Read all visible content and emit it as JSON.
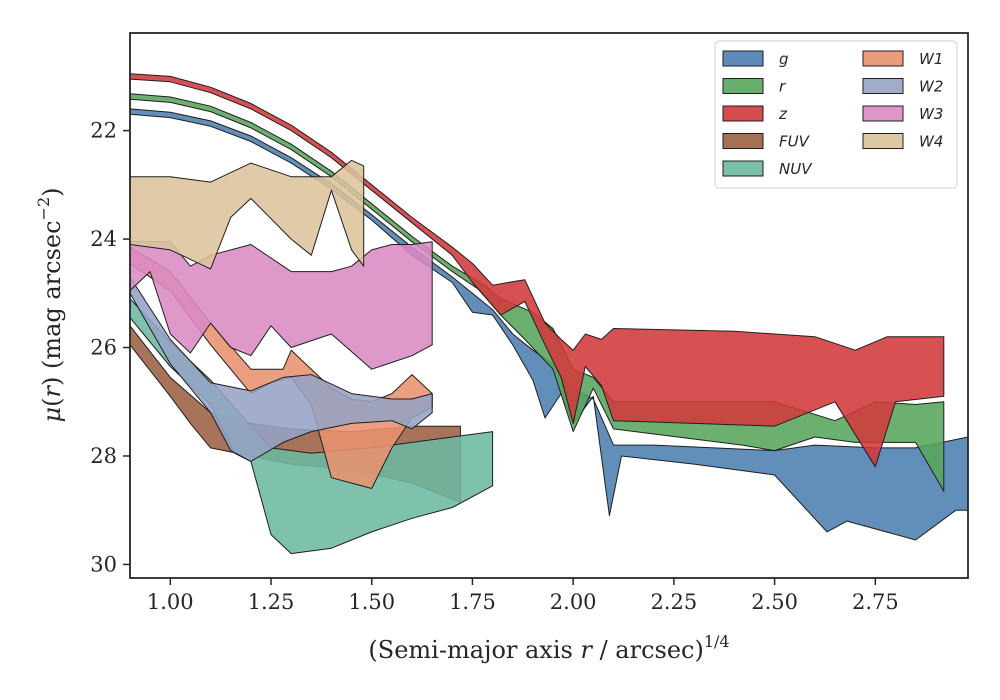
{
  "chart_data": {
    "type": "area",
    "title": "",
    "xlabel": "(Semi-major axis r / arcsec)^1/4",
    "xlabel_parts": {
      "prefix": "(Semi-major axis ",
      "var": "r",
      "mid": " / arcsec)",
      "sup": "1/4"
    },
    "ylabel": "μ(r) (mag arcsec−2)",
    "ylabel_parts": {
      "mu": "μ",
      "open": "(",
      "var": "r",
      "close": ") (mag arcsec",
      "sup": "−2",
      "end": ")"
    },
    "xlim": [
      0.9,
      2.98
    ],
    "ylim": [
      30.25,
      20.2
    ],
    "y_inverted": true,
    "xticks": [
      1.0,
      1.25,
      1.5,
      1.75,
      2.0,
      2.25,
      2.5,
      2.75
    ],
    "xtick_labels": [
      "1.00",
      "1.25",
      "1.50",
      "1.75",
      "2.00",
      "2.25",
      "2.50",
      "2.75"
    ],
    "yticks": [
      22,
      24,
      26,
      28,
      30
    ],
    "ytick_labels": [
      "22",
      "24",
      "26",
      "28",
      "30"
    ],
    "grid": false,
    "legend": {
      "placement": "top-right",
      "columns": 2
    },
    "series": [
      {
        "name": "g",
        "color": "#4c7eb0",
        "upper": [
          [
            0.9,
            21.6
          ],
          [
            1.0,
            21.66
          ],
          [
            1.1,
            21.82
          ],
          [
            1.2,
            22.1
          ],
          [
            1.3,
            22.5
          ],
          [
            1.4,
            22.98
          ],
          [
            1.5,
            23.55
          ],
          [
            1.6,
            24.15
          ],
          [
            1.7,
            24.7
          ],
          [
            1.8,
            25.3
          ],
          [
            1.85,
            25.75
          ],
          [
            1.9,
            26.05
          ],
          [
            1.95,
            26.3
          ],
          [
            2.0,
            26.75
          ],
          [
            2.05,
            26.95
          ],
          [
            2.1,
            27.8
          ],
          [
            2.2,
            27.8
          ],
          [
            2.35,
            27.85
          ],
          [
            2.5,
            27.9
          ],
          [
            2.6,
            27.8
          ],
          [
            2.75,
            27.85
          ],
          [
            2.85,
            27.85
          ],
          [
            2.98,
            27.65
          ]
        ],
        "lower": [
          [
            0.9,
            21.7
          ],
          [
            1.0,
            21.76
          ],
          [
            1.1,
            21.92
          ],
          [
            1.2,
            22.2
          ],
          [
            1.3,
            22.6
          ],
          [
            1.4,
            23.08
          ],
          [
            1.5,
            23.65
          ],
          [
            1.6,
            24.3
          ],
          [
            1.7,
            24.8
          ],
          [
            1.75,
            25.35
          ],
          [
            1.8,
            25.4
          ],
          [
            1.85,
            25.95
          ],
          [
            1.9,
            26.6
          ],
          [
            1.93,
            27.3
          ],
          [
            1.97,
            26.85
          ],
          [
            2.0,
            27.4
          ],
          [
            2.05,
            26.9
          ],
          [
            2.09,
            29.1
          ],
          [
            2.12,
            28.0
          ],
          [
            2.3,
            28.15
          ],
          [
            2.5,
            28.35
          ],
          [
            2.63,
            29.4
          ],
          [
            2.68,
            29.2
          ],
          [
            2.85,
            29.55
          ],
          [
            2.95,
            29.0
          ],
          [
            2.98,
            29.0
          ]
        ]
      },
      {
        "name": "r",
        "color": "#58a55c",
        "upper": [
          [
            0.9,
            21.32
          ],
          [
            1.0,
            21.38
          ],
          [
            1.1,
            21.55
          ],
          [
            1.2,
            21.85
          ],
          [
            1.3,
            22.25
          ],
          [
            1.4,
            22.75
          ],
          [
            1.5,
            23.35
          ],
          [
            1.6,
            23.95
          ],
          [
            1.7,
            24.5
          ],
          [
            1.78,
            24.85
          ],
          [
            1.82,
            25.1
          ],
          [
            1.9,
            25.35
          ],
          [
            1.95,
            25.65
          ],
          [
            2.0,
            26.4
          ],
          [
            2.05,
            26.55
          ],
          [
            2.1,
            27.0
          ],
          [
            2.3,
            27.0
          ],
          [
            2.5,
            27.0
          ],
          [
            2.65,
            27.35
          ],
          [
            2.75,
            27.0
          ],
          [
            2.85,
            27.05
          ],
          [
            2.92,
            27.0
          ]
        ],
        "lower": [
          [
            0.9,
            21.42
          ],
          [
            1.0,
            21.48
          ],
          [
            1.1,
            21.65
          ],
          [
            1.2,
            21.95
          ],
          [
            1.3,
            22.35
          ],
          [
            1.4,
            22.85
          ],
          [
            1.5,
            23.45
          ],
          [
            1.6,
            24.05
          ],
          [
            1.7,
            24.6
          ],
          [
            1.77,
            24.95
          ],
          [
            1.82,
            25.4
          ],
          [
            1.88,
            25.85
          ],
          [
            1.95,
            26.4
          ],
          [
            2.0,
            27.55
          ],
          [
            2.05,
            26.75
          ],
          [
            2.1,
            27.5
          ],
          [
            2.42,
            27.8
          ],
          [
            2.5,
            27.9
          ],
          [
            2.6,
            27.65
          ],
          [
            2.7,
            27.75
          ],
          [
            2.85,
            27.75
          ],
          [
            2.92,
            28.65
          ]
        ]
      },
      {
        "name": "z",
        "color": "#d1393b",
        "upper": [
          [
            0.9,
            20.95
          ],
          [
            1.0,
            21.0
          ],
          [
            1.1,
            21.2
          ],
          [
            1.2,
            21.5
          ],
          [
            1.3,
            21.9
          ],
          [
            1.4,
            22.4
          ],
          [
            1.5,
            23.0
          ],
          [
            1.6,
            23.6
          ],
          [
            1.7,
            24.15
          ],
          [
            1.75,
            24.45
          ],
          [
            1.8,
            24.85
          ],
          [
            1.88,
            24.75
          ],
          [
            1.93,
            25.55
          ],
          [
            1.97,
            25.85
          ],
          [
            2.0,
            26.05
          ],
          [
            2.03,
            25.75
          ],
          [
            2.07,
            25.85
          ],
          [
            2.1,
            25.65
          ],
          [
            2.4,
            25.7
          ],
          [
            2.5,
            25.75
          ],
          [
            2.6,
            25.8
          ],
          [
            2.7,
            26.05
          ],
          [
            2.78,
            25.8
          ],
          [
            2.92,
            25.8
          ]
        ],
        "lower": [
          [
            0.9,
            21.05
          ],
          [
            1.0,
            21.1
          ],
          [
            1.1,
            21.3
          ],
          [
            1.2,
            21.6
          ],
          [
            1.3,
            22.0
          ],
          [
            1.4,
            22.5
          ],
          [
            1.5,
            23.1
          ],
          [
            1.6,
            23.7
          ],
          [
            1.7,
            24.3
          ],
          [
            1.75,
            24.8
          ],
          [
            1.82,
            25.4
          ],
          [
            1.88,
            25.15
          ],
          [
            1.93,
            25.95
          ],
          [
            1.97,
            26.55
          ],
          [
            2.0,
            27.4
          ],
          [
            2.03,
            26.35
          ],
          [
            2.07,
            26.7
          ],
          [
            2.1,
            27.35
          ],
          [
            2.5,
            27.45
          ],
          [
            2.65,
            27.0
          ],
          [
            2.75,
            28.2
          ],
          [
            2.8,
            27.0
          ],
          [
            2.92,
            26.9
          ]
        ]
      },
      {
        "name": "FUV",
        "color": "#9c6142",
        "upper": [
          [
            0.9,
            25.6
          ],
          [
            1.0,
            26.55
          ],
          [
            1.1,
            27.2
          ],
          [
            1.2,
            27.4
          ],
          [
            1.3,
            27.5
          ],
          [
            1.45,
            27.55
          ],
          [
            1.6,
            27.45
          ],
          [
            1.72,
            27.45
          ]
        ],
        "lower": [
          [
            0.9,
            25.95
          ],
          [
            1.0,
            26.9
          ],
          [
            1.05,
            27.4
          ],
          [
            1.1,
            27.85
          ],
          [
            1.2,
            28.0
          ],
          [
            1.3,
            28.15
          ],
          [
            1.45,
            28.25
          ],
          [
            1.6,
            28.5
          ],
          [
            1.72,
            28.85
          ]
        ]
      },
      {
        "name": "NUV",
        "color": "#6cb8a0",
        "upper": [
          [
            0.9,
            25.1
          ],
          [
            1.0,
            25.9
          ],
          [
            1.1,
            26.6
          ],
          [
            1.17,
            27.2
          ],
          [
            1.25,
            27.85
          ],
          [
            1.35,
            27.95
          ],
          [
            1.5,
            27.85
          ],
          [
            1.6,
            27.75
          ],
          [
            1.7,
            27.65
          ],
          [
            1.8,
            27.55
          ]
        ],
        "lower": [
          [
            0.9,
            25.45
          ],
          [
            1.0,
            26.35
          ],
          [
            1.1,
            27.05
          ],
          [
            1.16,
            27.95
          ],
          [
            1.2,
            28.1
          ],
          [
            1.25,
            29.45
          ],
          [
            1.3,
            29.8
          ],
          [
            1.4,
            29.7
          ],
          [
            1.5,
            29.4
          ],
          [
            1.6,
            29.15
          ],
          [
            1.7,
            28.95
          ],
          [
            1.8,
            28.55
          ]
        ]
      },
      {
        "name": "W1",
        "color": "#e8926e",
        "upper": [
          [
            0.9,
            24.15
          ],
          [
            1.0,
            24.6
          ],
          [
            1.1,
            25.55
          ],
          [
            1.2,
            26.4
          ],
          [
            1.28,
            26.4
          ],
          [
            1.3,
            26.05
          ],
          [
            1.35,
            26.4
          ],
          [
            1.4,
            26.75
          ],
          [
            1.45,
            26.95
          ],
          [
            1.5,
            27.0
          ],
          [
            1.55,
            26.85
          ],
          [
            1.6,
            26.5
          ],
          [
            1.65,
            26.85
          ]
        ],
        "lower": [
          [
            0.9,
            24.45
          ],
          [
            1.0,
            24.95
          ],
          [
            1.1,
            25.95
          ],
          [
            1.2,
            26.85
          ],
          [
            1.25,
            26.65
          ],
          [
            1.3,
            26.55
          ],
          [
            1.35,
            27.05
          ],
          [
            1.4,
            28.4
          ],
          [
            1.45,
            28.5
          ],
          [
            1.5,
            28.6
          ],
          [
            1.55,
            27.85
          ],
          [
            1.6,
            27.3
          ],
          [
            1.65,
            27.1
          ]
        ]
      },
      {
        "name": "W2",
        "color": "#95a3c4",
        "upper": [
          [
            0.9,
            24.7
          ],
          [
            1.0,
            25.85
          ],
          [
            1.1,
            26.65
          ],
          [
            1.2,
            26.8
          ],
          [
            1.28,
            26.55
          ],
          [
            1.35,
            26.5
          ],
          [
            1.45,
            26.85
          ],
          [
            1.55,
            26.95
          ],
          [
            1.6,
            26.95
          ],
          [
            1.65,
            26.85
          ]
        ],
        "lower": [
          [
            0.9,
            25.0
          ],
          [
            1.0,
            26.3
          ],
          [
            1.1,
            27.2
          ],
          [
            1.15,
            27.9
          ],
          [
            1.2,
            28.1
          ],
          [
            1.28,
            27.75
          ],
          [
            1.35,
            27.55
          ],
          [
            1.45,
            27.4
          ],
          [
            1.55,
            27.35
          ],
          [
            1.6,
            27.5
          ],
          [
            1.65,
            27.2
          ]
        ]
      },
      {
        "name": "W3",
        "color": "#da8bc3",
        "upper": [
          [
            0.9,
            24.05
          ],
          [
            1.0,
            24.05
          ],
          [
            1.05,
            24.5
          ],
          [
            1.1,
            24.3
          ],
          [
            1.2,
            24.1
          ],
          [
            1.3,
            24.6
          ],
          [
            1.4,
            24.6
          ],
          [
            1.45,
            24.5
          ],
          [
            1.5,
            24.2
          ],
          [
            1.55,
            24.1
          ],
          [
            1.6,
            24.1
          ],
          [
            1.65,
            24.05
          ]
        ],
        "lower": [
          [
            0.9,
            24.95
          ],
          [
            0.95,
            24.6
          ],
          [
            1.0,
            25.75
          ],
          [
            1.05,
            26.1
          ],
          [
            1.1,
            25.55
          ],
          [
            1.15,
            26.0
          ],
          [
            1.2,
            26.15
          ],
          [
            1.25,
            25.6
          ],
          [
            1.3,
            26.0
          ],
          [
            1.4,
            25.75
          ],
          [
            1.5,
            26.4
          ],
          [
            1.6,
            26.15
          ],
          [
            1.65,
            25.95
          ]
        ]
      },
      {
        "name": "W4",
        "color": "#dcc39b",
        "upper": [
          [
            0.9,
            22.85
          ],
          [
            1.0,
            22.85
          ],
          [
            1.1,
            22.95
          ],
          [
            1.2,
            22.6
          ],
          [
            1.3,
            22.85
          ],
          [
            1.4,
            22.85
          ],
          [
            1.45,
            22.55
          ],
          [
            1.48,
            22.65
          ]
        ],
        "lower": [
          [
            0.9,
            24.1
          ],
          [
            1.0,
            24.2
          ],
          [
            1.1,
            24.55
          ],
          [
            1.15,
            23.6
          ],
          [
            1.2,
            23.25
          ],
          [
            1.3,
            24.0
          ],
          [
            1.35,
            24.3
          ],
          [
            1.4,
            23.1
          ],
          [
            1.45,
            24.2
          ],
          [
            1.48,
            24.5
          ]
        ]
      }
    ]
  }
}
